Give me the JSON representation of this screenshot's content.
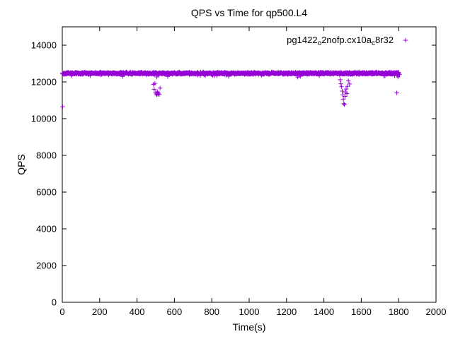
{
  "chart_data": {
    "type": "scatter",
    "title": "QPS vs Time for qp500.L4",
    "xlabel": "Time(s)",
    "ylabel": "QPS",
    "xlim": [
      0,
      2000
    ],
    "ylim": [
      0,
      15000
    ],
    "xticks": [
      0,
      200,
      400,
      600,
      800,
      1000,
      1200,
      1400,
      1600,
      1800,
      2000
    ],
    "yticks": [
      0,
      2000,
      4000,
      6000,
      8000,
      10000,
      12000,
      14000
    ],
    "grid": false,
    "marker": {
      "shape": "plus",
      "color": "#9400d3",
      "size": 7
    },
    "legend": {
      "position": "top-right",
      "label_plain": "pg1422o2nofp.cx10ac8r32",
      "label_parts": [
        {
          "text": "pg1422"
        },
        {
          "text": "o",
          "sub": true
        },
        {
          "text": "2nofp.cx10a"
        },
        {
          "text": "c",
          "sub": true
        },
        {
          "text": "8r32"
        }
      ]
    },
    "series": [
      {
        "name": "pg1422o2nofp.cx10ac8r32",
        "band": {
          "x_start": 0,
          "x_end": 1806,
          "x_step": 1.2,
          "y_mean": 12470,
          "y_jitter": 70,
          "dip_prob": 0.035,
          "dip_max": 190,
          "seed": 42
        },
        "outliers": [
          [
            2,
            10650
          ],
          [
            488,
            11870
          ],
          [
            492,
            11600
          ],
          [
            496,
            11920
          ],
          [
            500,
            11440
          ],
          [
            503,
            11350
          ],
          [
            506,
            11300
          ],
          [
            509,
            11460
          ],
          [
            512,
            11330
          ],
          [
            515,
            11390
          ],
          [
            519,
            11320
          ],
          [
            523,
            11660
          ],
          [
            1487,
            12120
          ],
          [
            1491,
            11900
          ],
          [
            1494,
            11740
          ],
          [
            1498,
            11500
          ],
          [
            1501,
            11300
          ],
          [
            1504,
            11060
          ],
          [
            1507,
            10820
          ],
          [
            1510,
            10760
          ],
          [
            1513,
            11210
          ],
          [
            1516,
            11450
          ],
          [
            1519,
            11610
          ],
          [
            1523,
            11360
          ],
          [
            1527,
            11760
          ],
          [
            1531,
            12060
          ],
          [
            1537,
            11890
          ],
          [
            1790,
            11400
          ]
        ]
      }
    ]
  }
}
